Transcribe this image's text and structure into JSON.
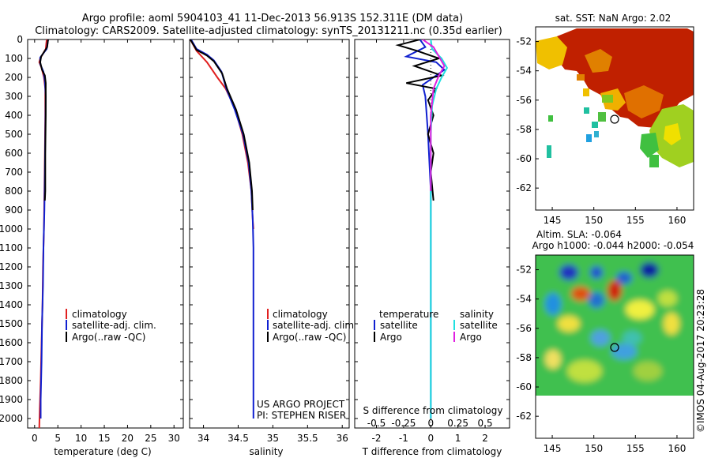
{
  "header": {
    "title_line1": "Argo profile: aoml 5904103_41 11-Dec-2013 56.913S 152.311E (DM data)",
    "title_line2": "Climatology: CARS2009. Satellite-adjusted climatology: synTS_20131211.nc (0.35d earlier)"
  },
  "watermark": "©IMOS 04-Aug-2017 20:23:28",
  "colors": {
    "climatology": "#e02020",
    "satellite": "#1020d0",
    "argo": "#000000",
    "sat_salinity": "#20e0e0",
    "argo_salinity": "#e020e0"
  },
  "chart_data": [
    {
      "type": "line",
      "name": "temperature-profile",
      "xlabel": "temperature (deg C)",
      "xlim": [
        -1.5,
        32
      ],
      "xticks": [
        0,
        5,
        10,
        15,
        20,
        25,
        30
      ],
      "ylim": [
        0,
        2050
      ],
      "yticks": [
        0,
        100,
        200,
        300,
        400,
        500,
        600,
        700,
        800,
        900,
        1000,
        1100,
        1200,
        1300,
        1400,
        1500,
        1600,
        1700,
        1800,
        1900,
        2000
      ],
      "legend": [
        "climatology",
        "satellite-adj. clim.",
        "Argo(..raw -QC)"
      ],
      "series": [
        {
          "name": "climatology",
          "color": "#e02020",
          "points": [
            [
              2.6,
              0
            ],
            [
              2.4,
              50
            ],
            [
              1.2,
              100
            ],
            [
              1.0,
              120
            ],
            [
              1.5,
              150
            ],
            [
              2.0,
              200
            ],
            [
              2.3,
              260
            ],
            [
              2.3,
              400
            ],
            [
              2.2,
              600
            ],
            [
              2.1,
              800
            ],
            [
              2.0,
              1000
            ],
            [
              1.8,
              1200
            ],
            [
              1.7,
              1400
            ],
            [
              1.5,
              1600
            ],
            [
              1.3,
              1800
            ],
            [
              1.1,
              1950
            ],
            [
              1.0,
              2050
            ]
          ]
        },
        {
          "name": "satellite-adj. clim.",
          "color": "#1020d0",
          "points": [
            [
              2.9,
              0
            ],
            [
              2.6,
              50
            ],
            [
              1.2,
              95
            ],
            [
              1.2,
              130
            ],
            [
              1.9,
              170
            ],
            [
              2.2,
              220
            ],
            [
              2.4,
              300
            ],
            [
              2.3,
              500
            ],
            [
              2.2,
              700
            ],
            [
              2.1,
              900
            ],
            [
              1.9,
              1100
            ],
            [
              1.8,
              1300
            ],
            [
              1.6,
              1500
            ],
            [
              1.5,
              1700
            ],
            [
              1.3,
              1900
            ],
            [
              1.3,
              2000
            ]
          ]
        },
        {
          "name": "Argo(..raw -QC)",
          "color": "#000000",
          "points": [
            [
              2.9,
              0
            ],
            [
              2.7,
              40
            ],
            [
              1.4,
              90
            ],
            [
              1.2,
              120
            ],
            [
              1.6,
              160
            ],
            [
              2.2,
              190
            ],
            [
              2.4,
              230
            ],
            [
              2.4,
              400
            ],
            [
              2.3,
              600
            ],
            [
              2.3,
              800
            ],
            [
              2.2,
              850
            ]
          ]
        }
      ]
    },
    {
      "type": "line",
      "name": "salinity-profile",
      "xlabel": "salinity",
      "xlim": [
        33.8,
        36.1
      ],
      "xticks": [
        34,
        34.5,
        35,
        35.5,
        36
      ],
      "ylim": [
        0,
        2050
      ],
      "legend": [
        "climatology",
        "satellite-adj. clim.",
        "Argo(..raw -QC)"
      ],
      "annotations": [
        "US ARGO PROJECT",
        "PI: STEPHEN RISER"
      ],
      "series": [
        {
          "name": "climatology",
          "color": "#e02020",
          "points": [
            [
              33.81,
              0
            ],
            [
              33.9,
              60
            ],
            [
              34.05,
              120
            ],
            [
              34.2,
              200
            ],
            [
              34.32,
              260
            ],
            [
              34.45,
              360
            ],
            [
              34.56,
              500
            ],
            [
              34.64,
              650
            ],
            [
              34.69,
              800
            ],
            [
              34.71,
              950
            ],
            [
              34.72,
              1000
            ]
          ]
        },
        {
          "name": "satellite-adj. clim.",
          "color": "#1020d0",
          "points": [
            [
              33.82,
              0
            ],
            [
              33.9,
              50
            ],
            [
              34.05,
              80
            ],
            [
              34.15,
              110
            ],
            [
              34.26,
              170
            ],
            [
              34.33,
              260
            ],
            [
              34.45,
              370
            ],
            [
              34.57,
              500
            ],
            [
              34.65,
              650
            ],
            [
              34.69,
              800
            ],
            [
              34.71,
              950
            ],
            [
              34.72,
              1100
            ],
            [
              34.72,
              1500
            ],
            [
              34.72,
              2000
            ]
          ]
        },
        {
          "name": "Argo(..raw -QC)",
          "color": "#000000",
          "points": [
            [
              33.81,
              0
            ],
            [
              33.9,
              55
            ],
            [
              34.05,
              85
            ],
            [
              34.15,
              115
            ],
            [
              34.27,
              180
            ],
            [
              34.34,
              260
            ],
            [
              34.47,
              370
            ],
            [
              34.58,
              500
            ],
            [
              34.66,
              650
            ],
            [
              34.7,
              800
            ],
            [
              34.71,
              900
            ]
          ]
        }
      ]
    },
    {
      "type": "line",
      "name": "difference-profile",
      "xlabel": "T difference from climatology",
      "xlabel_top": "S difference from climatology",
      "xlim": [
        -2.8,
        2.9
      ],
      "xticks": [
        -2,
        -1,
        0,
        1,
        2
      ],
      "xticks_top": [
        -0.5,
        -0.25,
        0,
        0.25,
        0.5
      ],
      "ylim": [
        0,
        2050
      ],
      "legend_left": [
        "temperature",
        "satellite",
        "Argo"
      ],
      "legend_right": [
        "salinity",
        "satellite",
        "Argo"
      ],
      "series": [
        {
          "name": "T satellite",
          "color": "#1020d0",
          "points": [
            [
              -0.4,
              0
            ],
            [
              -0.2,
              40
            ],
            [
              -0.9,
              90
            ],
            [
              0.2,
              120
            ],
            [
              0.5,
              160
            ],
            [
              0.1,
              200
            ],
            [
              -0.3,
              240
            ],
            [
              -0.2,
              300
            ],
            [
              -0.1,
              500
            ],
            [
              0,
              800
            ],
            [
              0,
              2000
            ]
          ]
        },
        {
          "name": "T Argo",
          "color": "#000000",
          "points": [
            [
              -0.4,
              0
            ],
            [
              -1.2,
              30
            ],
            [
              -0.5,
              60
            ],
            [
              0.3,
              100
            ],
            [
              -0.6,
              140
            ],
            [
              0.4,
              190
            ],
            [
              -0.9,
              230
            ],
            [
              0.2,
              260
            ],
            [
              -0.1,
              320
            ],
            [
              0.1,
              400
            ],
            [
              -0.1,
              500
            ],
            [
              0.1,
              600
            ],
            [
              0,
              700
            ],
            [
              0.1,
              850
            ]
          ]
        },
        {
          "name": "S satellite",
          "color": "#20e0e0",
          "points": [
            [
              0,
              0
            ],
            [
              0.05,
              50
            ],
            [
              0.4,
              100
            ],
            [
              0.6,
              150
            ],
            [
              0.4,
              200
            ],
            [
              0.2,
              260
            ],
            [
              0.05,
              350
            ],
            [
              0,
              500
            ],
            [
              0,
              900
            ],
            [
              0,
              2000
            ]
          ]
        },
        {
          "name": "S Argo",
          "color": "#e020e0",
          "points": [
            [
              -0.3,
              0
            ],
            [
              0.1,
              40
            ],
            [
              0.3,
              90
            ],
            [
              0.5,
              140
            ],
            [
              0.3,
              190
            ],
            [
              0.1,
              260
            ],
            [
              0,
              400
            ],
            [
              0,
              800
            ]
          ]
        }
      ]
    },
    {
      "type": "heatmap",
      "name": "sst-map",
      "title": "sat. SST: NaN Argo: 2.02",
      "xlim": [
        143,
        162
      ],
      "ylim": [
        -63.5,
        -51
      ],
      "xticks": [
        145,
        150,
        155,
        160
      ],
      "yticks": [
        -52,
        -54,
        -56,
        -58,
        -60,
        -62
      ],
      "argo_position": [
        152.3,
        -56.9
      ]
    },
    {
      "type": "heatmap",
      "name": "sla-map",
      "title": "Altim. SLA: -0.064",
      "subtitle": "Argo h1000: -0.044 h2000: -0.054",
      "xlim": [
        143,
        162
      ],
      "ylim": [
        -63.5,
        -51
      ],
      "xticks": [
        145,
        150,
        155,
        160
      ],
      "yticks": [
        -52,
        -54,
        -56,
        -58,
        -60,
        -62
      ],
      "argo_position": [
        152.3,
        -56.9
      ]
    }
  ]
}
